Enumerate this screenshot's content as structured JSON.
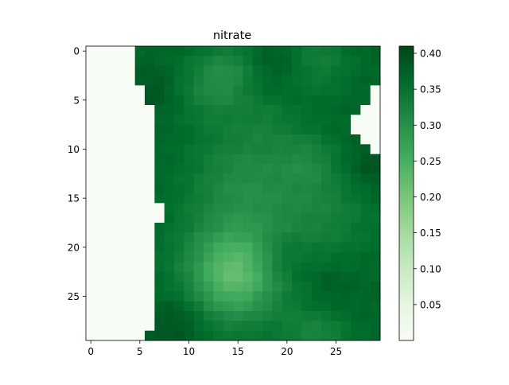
{
  "chart_data": {
    "type": "heatmap",
    "title": "nitrate",
    "xlabel": "",
    "ylabel": "",
    "rows": 30,
    "cols": 30,
    "x_ticks": [
      0,
      5,
      10,
      15,
      20,
      25
    ],
    "y_ticks": [
      0,
      5,
      10,
      15,
      20,
      25
    ],
    "y_axis_inverted": true,
    "colormap": "Greens",
    "colormap_stops": [
      "#f7fcf5",
      "#e5f5e0",
      "#c7e9c0",
      "#a1d99b",
      "#74c476",
      "#41ab5d",
      "#238b45",
      "#006d2c",
      "#00441b"
    ],
    "vmin": 0.0,
    "vmax": 0.41,
    "colorbar_ticks": [
      0.05,
      0.1,
      0.15,
      0.2,
      0.25,
      0.3,
      0.35,
      0.4
    ],
    "colorbar_tick_labels": [
      "0.05",
      "0.10",
      "0.15",
      "0.20",
      "0.25",
      "0.30",
      "0.35",
      "0.40"
    ],
    "land_value": 0.0,
    "land_mask_note": "cells with value 0 are land (near-white)",
    "land_left_edge_by_row": [
      5,
      5,
      5,
      5,
      6,
      6,
      7,
      7,
      7,
      7,
      7,
      7,
      7,
      7,
      7,
      7,
      8,
      8,
      7,
      7,
      7,
      7,
      7,
      7,
      7,
      7,
      7,
      7,
      7,
      6
    ],
    "land_right_patch": [
      {
        "row": 4,
        "from_col": 29
      },
      {
        "row": 5,
        "from_col": 29
      },
      {
        "row": 6,
        "from_col": 28
      },
      {
        "row": 7,
        "from_col": 27
      },
      {
        "row": 8,
        "from_col": 27
      },
      {
        "row": 9,
        "from_col": 28
      },
      {
        "row": 10,
        "from_col": 29
      }
    ],
    "ocean_base_value": 0.37,
    "ocean_features": [
      {
        "row": 3.5,
        "col": 12.5,
        "radius": 2.5,
        "value": 0.32
      },
      {
        "row": 1.5,
        "col": 14.5,
        "radius": 2.0,
        "value": 0.34
      },
      {
        "row": 1.0,
        "col": 23.0,
        "radius": 2.5,
        "value": 0.33
      },
      {
        "row": 12.5,
        "col": 15.5,
        "radius": 4.0,
        "value": 0.32
      },
      {
        "row": 23.0,
        "col": 14.5,
        "radius": 3.0,
        "value": 0.28
      },
      {
        "row": 21.5,
        "col": 15.0,
        "radius": 4.5,
        "value": 0.31
      },
      {
        "row": 16.0,
        "col": 24.0,
        "radius": 4.0,
        "value": 0.33
      },
      {
        "row": 29.5,
        "col": 23.0,
        "radius": 2.5,
        "value": 0.32
      },
      {
        "row": 11.0,
        "col": 22.0,
        "radius": 2.0,
        "value": 0.34
      },
      {
        "row": 1.0,
        "col": 19.0,
        "radius": 2.0,
        "value": 0.39
      },
      {
        "row": 24.0,
        "col": 24.0,
        "radius": 2.0,
        "value": 0.39
      },
      {
        "row": 21.0,
        "col": 19.5,
        "radius": 1.8,
        "value": 0.4
      },
      {
        "row": 27.5,
        "col": 9.0,
        "radius": 2.0,
        "value": 0.4
      },
      {
        "row": 4.0,
        "col": 6.5,
        "radius": 1.5,
        "value": 0.39
      },
      {
        "row": 12.0,
        "col": 28.5,
        "radius": 2.0,
        "value": 0.4
      },
      {
        "row": 7.0,
        "col": 18.0,
        "radius": 2.0,
        "value": 0.35
      }
    ]
  }
}
